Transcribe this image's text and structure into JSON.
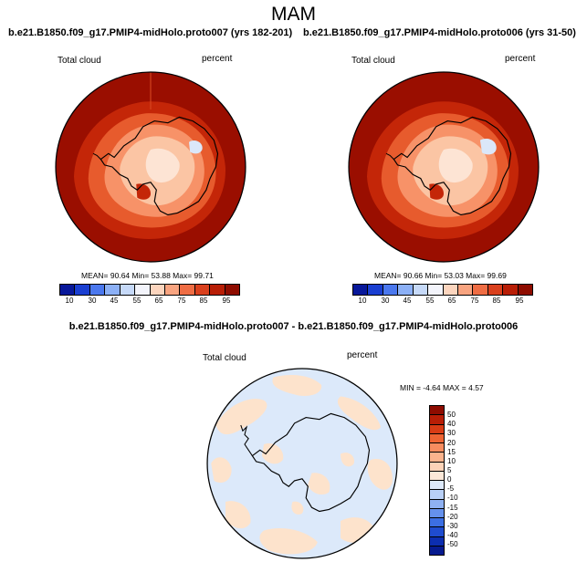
{
  "season": "MAM",
  "panels": [
    {
      "title": "b.e21.B1850.f09_g17.PMIP4-midHolo.proto007 (yrs 182-201)",
      "variable": "Total cloud",
      "units": "percent",
      "stats": "MEAN= 90.64 Min= 53.88 Max= 99.71"
    },
    {
      "title": "b.e21.B1850.f09_g17.PMIP4-midHolo.proto006 (yrs 31-50)",
      "variable": "Total cloud",
      "units": "percent",
      "stats": "MEAN= 90.66 Min= 53.03 Max= 99.69"
    }
  ],
  "diff_panel": {
    "title": "b.e21.B1850.f09_g17.PMIP4-midHolo.proto007 - b.e21.B1850.f09_g17.PMIP4-midHolo.proto006",
    "variable": "Total cloud",
    "units": "percent",
    "stats": "MIN = -4.64 MAX = 4.57"
  },
  "colorbar_abs": {
    "labels": [
      "10",
      "30",
      "45",
      "55",
      "65",
      "75",
      "85",
      "95"
    ],
    "colors": [
      "#08189a",
      "#1a3fd1",
      "#4b78ee",
      "#8cb0f6",
      "#c6d9f8",
      "#f3f4fb",
      "#fcd5be",
      "#f8a480",
      "#ef6d44",
      "#d9401d",
      "#b81e06",
      "#8e0c00"
    ]
  },
  "colorbar_diff": {
    "labels": [
      "50",
      "40",
      "30",
      "20",
      "15",
      "10",
      "5",
      "0",
      "-5",
      "-10",
      "-15",
      "-20",
      "-30",
      "-40",
      "-50"
    ],
    "colors": [
      "#8e0c00",
      "#b81e06",
      "#d93c15",
      "#ee6433",
      "#f78c5f",
      "#fbb38d",
      "#fdd3b8",
      "#fde8d8",
      "#dde9fa",
      "#b9d0f6",
      "#8fb1f2",
      "#6591ec",
      "#3c6fe3",
      "#1f4ccf",
      "#0c2eb0",
      "#061a8f"
    ]
  },
  "map_colors": {
    "deep_red": "#9a0e00",
    "red": "#c42608",
    "orange": "#e75b2d",
    "light_orange": "#f79268",
    "peach": "#fbc5a4",
    "pale": "#fde4d4",
    "pale_blue": "#dbe7f9",
    "diff_peach": "#fde3cc",
    "diff_blue": "#dce9fa"
  }
}
